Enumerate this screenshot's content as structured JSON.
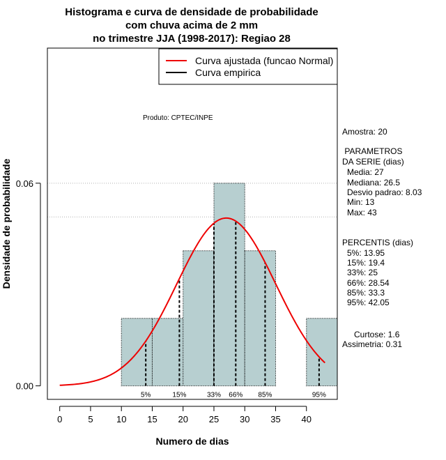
{
  "chart_data": {
    "type": "bar",
    "title_lines": [
      "Histograma e curva de densidade de probabilidade",
      "com chuva acima de 2 mm",
      "no trimestre JJA (1998-2017): Regiao 28"
    ],
    "xlabel": "Numero de dias",
    "ylabel": "Densidade de probabilidade",
    "xlim": [
      -2,
      45
    ],
    "ylim": [
      -0.004,
      0.1
    ],
    "x_ticks": [
      0,
      5,
      10,
      15,
      20,
      25,
      30,
      35,
      40
    ],
    "y_ticks": [
      0.0,
      0.06
    ],
    "y_tick_labels": [
      "0.00",
      "0.06"
    ],
    "bins": [
      {
        "start": 10,
        "end": 15,
        "density": 0.02
      },
      {
        "start": 15,
        "end": 20,
        "density": 0.02
      },
      {
        "start": 20,
        "end": 25,
        "density": 0.04
      },
      {
        "start": 25,
        "end": 30,
        "density": 0.06
      },
      {
        "start": 30,
        "end": 35,
        "density": 0.04
      },
      {
        "start": 35,
        "end": 40,
        "density": 0.0
      },
      {
        "start": 40,
        "end": 45,
        "density": 0.02
      }
    ],
    "normal_curve": {
      "mean": 27,
      "sd": 8.03,
      "x_from": 0,
      "x_to": 43
    },
    "percentiles": [
      {
        "label": "5%",
        "value": 13.95
      },
      {
        "label": "15%",
        "value": 19.4
      },
      {
        "label": "33%",
        "value": 25
      },
      {
        "label": "66%",
        "value": 28.54
      },
      {
        "label": "85%",
        "value": 33.3
      },
      {
        "label": "95%",
        "value": 42.05
      }
    ],
    "grid_y": [
      0.06,
      0.05,
      0.1
    ],
    "legend": {
      "position": "top-right",
      "entries": [
        {
          "label": "Curva ajustada (funcao Normal)",
          "color": "#ee0000"
        },
        {
          "label": "Curva empirica",
          "color": "#000000"
        }
      ]
    },
    "bar_color": "#b7cfd0",
    "annotation": "Produto: CPTEC/INPE"
  },
  "stats_panel": {
    "sample": "Amostra: 20",
    "params_title_1": " PARAMETROS",
    "params_title_2": "DA SERIE (dias)",
    "params": [
      "Media: 27",
      "Mediana: 26.5",
      "Desvio padrao: 8.03",
      "Min: 13",
      "Max: 43"
    ],
    "percentis_title": "PERCENTIS (dias)",
    "percentis": [
      "5%: 13.95",
      "15%: 19.4",
      "33%: 25",
      "66%: 28.54",
      "85%: 33.3",
      "95%: 42.05"
    ],
    "curtose": "Curtose: 1.6",
    "assimetria": "Assimetria: 0.31"
  }
}
